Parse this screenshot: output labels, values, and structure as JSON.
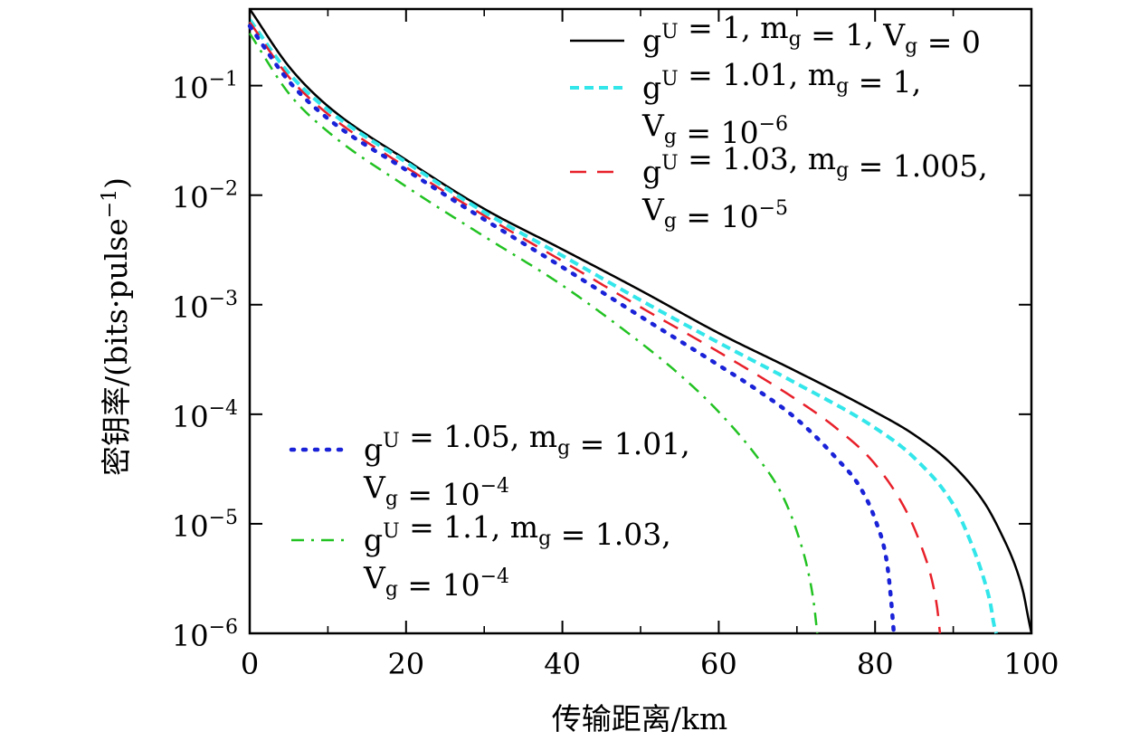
{
  "chart_data": {
    "type": "line",
    "xlabel": "传输距离/km",
    "ylabel": "密钥率/(bits·pulse",
    "ylabel_exp": "−1",
    "ylabel_close": ")",
    "xlim": [
      0,
      100
    ],
    "ylim": [
      1e-06,
      0.5
    ],
    "yscale": "log",
    "xticks": [
      "0",
      "20",
      "40",
      "60",
      "80",
      "100"
    ],
    "yticks": [
      {
        "base": "10",
        "exp": "−1"
      },
      {
        "base": "10",
        "exp": "−2"
      },
      {
        "base": "10",
        "exp": "−3"
      },
      {
        "base": "10",
        "exp": "−4"
      },
      {
        "base": "10",
        "exp": "−5"
      },
      {
        "base": "10",
        "exp": "−6"
      }
    ],
    "grid": false,
    "legend": [
      {
        "lines": [
          "g^U = 1, m_g = 1, V_g = 0"
        ],
        "color": "#000000",
        "dash": "solid"
      },
      {
        "lines": [
          "g^U = 1.01, m_g = 1,",
          "V_g = 10^{−6}"
        ],
        "color": "#33e6ea",
        "dash": "dashed"
      },
      {
        "lines": [
          "g^U = 1.03, m_g = 1.005,",
          "V_g = 10^{−5}"
        ],
        "color": "#e8202a",
        "dash": "long-dashed"
      },
      {
        "lines": [
          "g^U = 1.05, m_g = 1.01,",
          "V_g = 10^{−4}"
        ],
        "color": "#1a22d8",
        "dash": "dotted"
      },
      {
        "lines": [
          "g^U = 1.1, m_g = 1.03,",
          "V_g = 10^{−4}"
        ],
        "color": "#22c222",
        "dash": "dash-dot"
      }
    ],
    "series": [
      {
        "name": "g^U = 1, m_g = 1, V_g = 0",
        "color": "#000000",
        "x": [
          0,
          5,
          10,
          20,
          30,
          40,
          50,
          60,
          70,
          80,
          85,
          90,
          94,
          96,
          98,
          99,
          99.5,
          100
        ],
        "y": [
          0.5,
          0.15,
          0.065,
          0.021,
          0.0075,
          0.0032,
          0.00135,
          0.00055,
          0.000245,
          0.000105,
          6.5e-05,
          3.4e-05,
          1.55e-05,
          8.5e-06,
          4e-06,
          2.3e-06,
          1.5e-06,
          1e-06
        ]
      },
      {
        "name": "g^U = 1.01, m_g = 1, V_g = 10^{-6}",
        "color": "#33e6ea",
        "x": [
          0,
          5,
          10,
          20,
          30,
          40,
          50,
          60,
          70,
          80,
          85,
          90,
          92,
          94,
          94.8,
          95.2,
          95.5
        ],
        "y": [
          0.4,
          0.13,
          0.06,
          0.02,
          0.007,
          0.0028,
          0.0011,
          0.00045,
          0.00019,
          7.5e-05,
          4e-05,
          1.5e-05,
          7.5e-06,
          3e-06,
          1.8e-06,
          1.2e-06,
          1e-06
        ]
      },
      {
        "name": "g^U = 1.03, m_g = 1.005, V_g = 10^{-5}",
        "color": "#e8202a",
        "x": [
          0,
          5,
          10,
          20,
          30,
          40,
          50,
          60,
          70,
          75,
          80,
          84,
          86,
          87.3,
          88,
          88.3
        ],
        "y": [
          0.38,
          0.12,
          0.055,
          0.018,
          0.0065,
          0.0025,
          0.00095,
          0.00037,
          0.000135,
          7.5e-05,
          3.5e-05,
          1.3e-05,
          6e-06,
          3e-06,
          1.6e-06,
          1e-06
        ]
      },
      {
        "name": "g^U = 1.05, m_g = 1.01, V_g = 10^{-4}",
        "color": "#1a22d8",
        "x": [
          0,
          5,
          10,
          20,
          30,
          40,
          50,
          60,
          65,
          70,
          75,
          78,
          80,
          81.5,
          82,
          82.4
        ],
        "y": [
          0.35,
          0.11,
          0.05,
          0.017,
          0.006,
          0.0022,
          0.00078,
          0.00028,
          0.000165,
          9e-05,
          4e-05,
          2.2e-05,
          1.1e-05,
          4.5e-06,
          2.2e-06,
          1e-06
        ]
      },
      {
        "name": "g^U = 1.1, m_g = 1.03, V_g = 10^{-4}",
        "color": "#22c222",
        "x": [
          0,
          5,
          10,
          20,
          30,
          40,
          50,
          55,
          60,
          65,
          68,
          70,
          71.5,
          72.2,
          72.6
        ],
        "y": [
          0.3,
          0.085,
          0.038,
          0.012,
          0.0042,
          0.0015,
          0.00045,
          0.00023,
          0.000105,
          4e-05,
          1.9e-05,
          8.5e-06,
          3.5e-06,
          1.8e-06,
          1e-06
        ]
      }
    ]
  }
}
